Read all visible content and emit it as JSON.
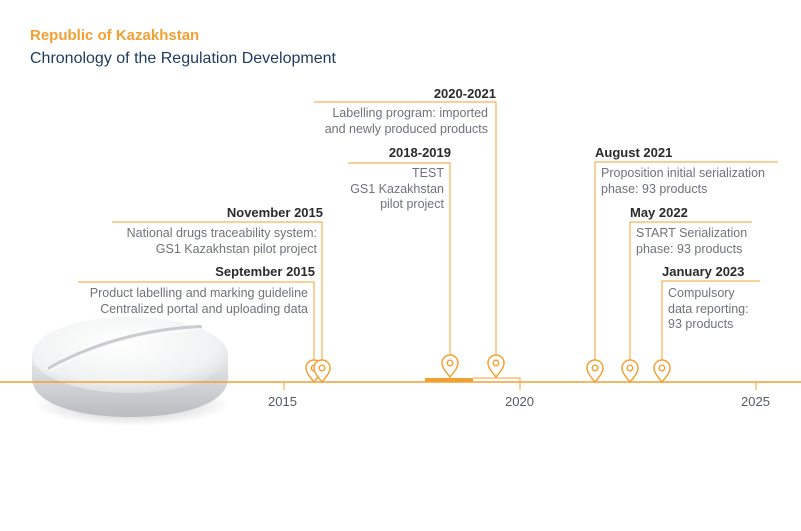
{
  "header": {
    "country": "Republic of Kazakhstan",
    "subtitle": "Chronology of the Regulation Development"
  },
  "timeline": {
    "years": [
      "2015",
      "2020",
      "2025"
    ],
    "events": [
      {
        "title": "September 2015",
        "lines": [
          "Product labelling and marking guideline",
          "Centralized portal and uploading data"
        ]
      },
      {
        "title": "November 2015",
        "lines": [
          "National drugs traceability system:",
          "GS1 Kazakhstan pilot project"
        ]
      },
      {
        "title": "2018-2019",
        "lines": [
          "TEST",
          "GS1 Kazakhstan",
          "pilot project"
        ]
      },
      {
        "title": "2020-2021",
        "lines": [
          "Labelling program: imported",
          "and newly produced products"
        ]
      },
      {
        "title": "August 2021",
        "lines": [
          "Proposition initial serialization",
          "phase: 93 products"
        ]
      },
      {
        "title": "May 2022",
        "lines": [
          "START Serialization",
          "phase: 93 products"
        ]
      },
      {
        "title": "January 2023",
        "lines": [
          "Compulsory",
          "data reporting:",
          "93 products"
        ]
      }
    ]
  },
  "colors": {
    "accent": "#f3a033",
    "title": "#1f3a5f",
    "text": "#6f7378",
    "axis": "#f3a033"
  }
}
